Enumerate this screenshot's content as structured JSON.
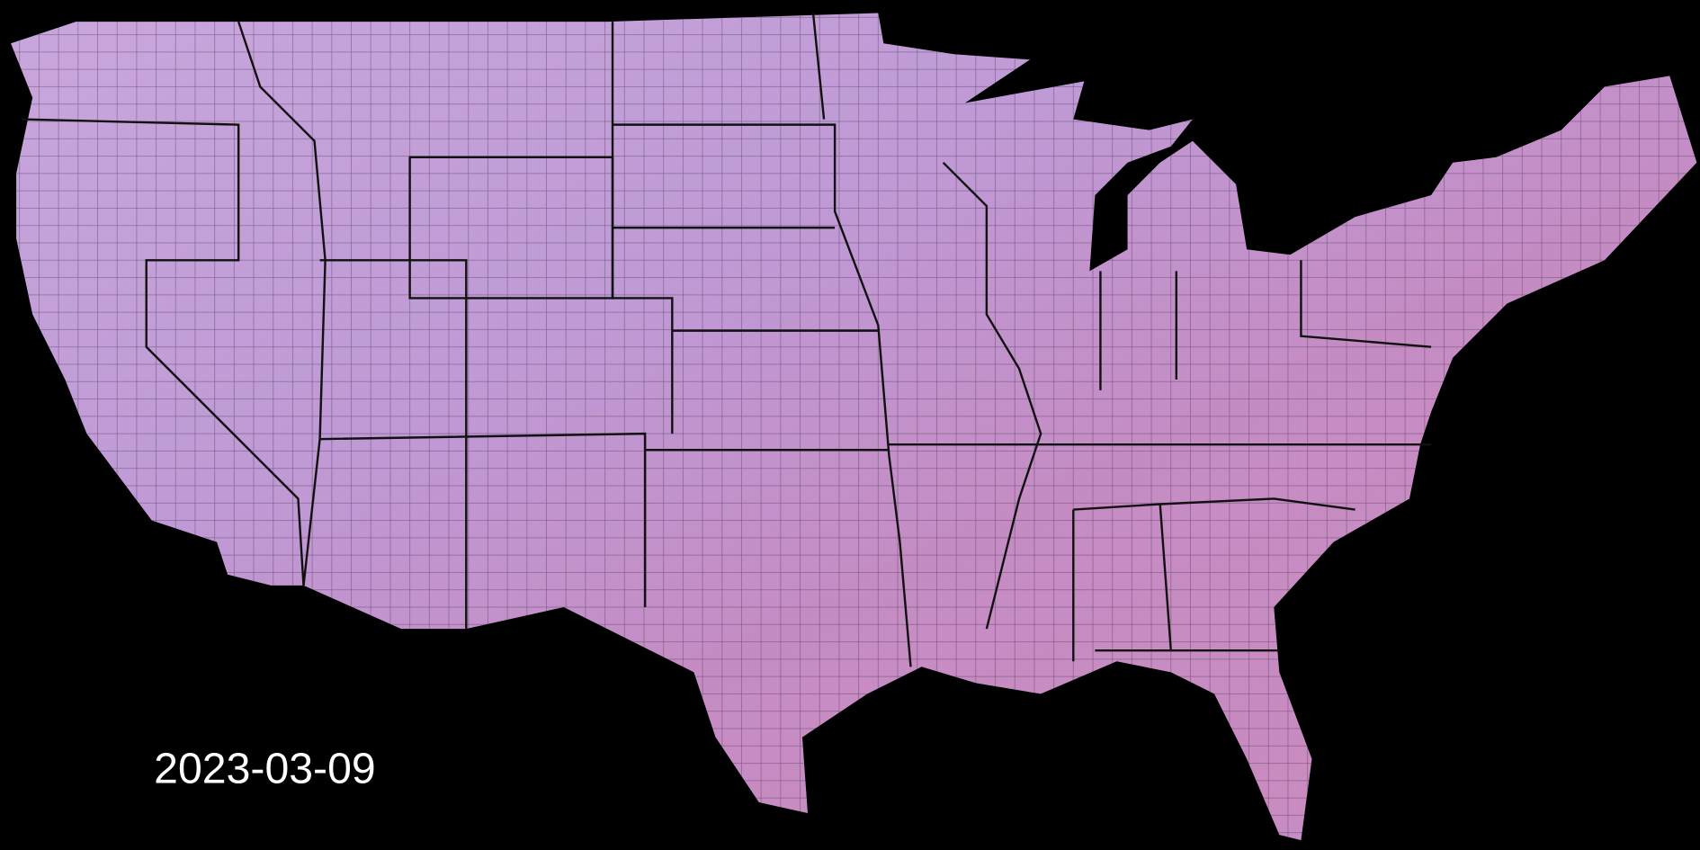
{
  "date_label": "2023-03-09"
}
